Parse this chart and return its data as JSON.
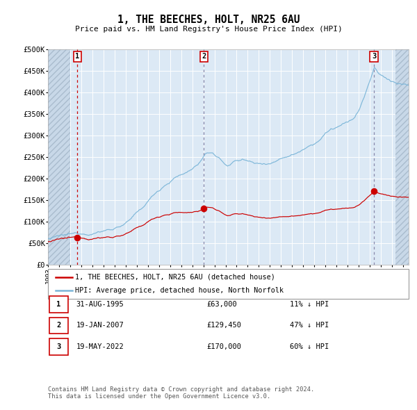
{
  "title": "1, THE BEECHES, HOLT, NR25 6AU",
  "subtitle": "Price paid vs. HM Land Registry's House Price Index (HPI)",
  "ylim": [
    0,
    500000
  ],
  "yticks": [
    0,
    50000,
    100000,
    150000,
    200000,
    250000,
    300000,
    350000,
    400000,
    450000,
    500000
  ],
  "ytick_labels": [
    "£0",
    "£50K",
    "£100K",
    "£150K",
    "£200K",
    "£250K",
    "£300K",
    "£350K",
    "£400K",
    "£450K",
    "£500K"
  ],
  "hpi_color": "#7ab5d8",
  "price_color": "#cc0000",
  "dot_color": "#cc0000",
  "vline1_color": "#cc0000",
  "vline2_color": "#8888aa",
  "vline3_color": "#8888aa",
  "background_color": "#dce9f5",
  "sale1_date": 1995.66,
  "sale1_price": 63000,
  "sale2_date": 2007.05,
  "sale2_price": 129450,
  "sale3_date": 2022.38,
  "sale3_price": 170000,
  "xmin": 1993.0,
  "xmax": 2025.5,
  "hatch_left_end": 1995.0,
  "hatch_right_start": 2024.3,
  "footer": "Contains HM Land Registry data © Crown copyright and database right 2024.\nThis data is licensed under the Open Government Licence v3.0.",
  "table_rows": [
    {
      "num": "1",
      "date": "31-AUG-1995",
      "price": "£63,000",
      "hpi": "11% ↓ HPI"
    },
    {
      "num": "2",
      "date": "19-JAN-2007",
      "price": "£129,450",
      "hpi": "47% ↓ HPI"
    },
    {
      "num": "3",
      "date": "19-MAY-2022",
      "price": "£170,000",
      "hpi": "60% ↓ HPI"
    }
  ]
}
